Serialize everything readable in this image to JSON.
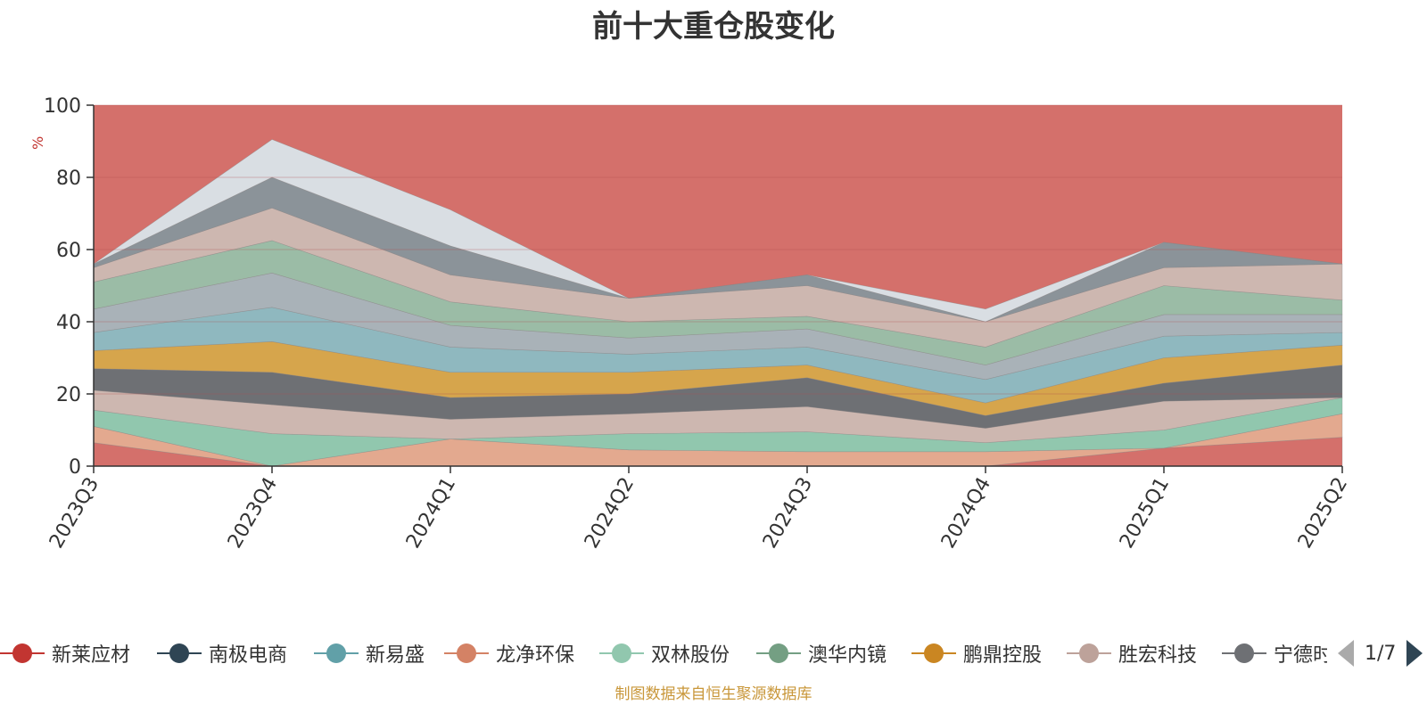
{
  "chart_data": {
    "type": "area",
    "title": "前十大重仓股变化",
    "ylabel": "%",
    "ylim": [
      0,
      100
    ],
    "yticks": [
      0,
      20,
      40,
      60,
      80,
      100
    ],
    "categories": [
      "2023Q3",
      "2023Q4",
      "2024Q1",
      "2024Q2",
      "2024Q3",
      "2024Q4",
      "2025Q1",
      "2025Q2"
    ],
    "legend_position": "bottom",
    "legend_page": "1/7",
    "colors": [
      "#c23531",
      "#2f4554",
      "#61a0a8",
      "#d48265",
      "#91c7ae",
      "#749f83",
      "#ca8622",
      "#bda29a",
      "#6e7074",
      "#546570"
    ],
    "series": [
      {
        "name": "新莱应材",
        "color": "#c23531",
        "values": [
          6.5,
          0,
          0,
          0,
          0,
          0,
          5,
          14
        ]
      },
      {
        "name": "南极电商",
        "color": "#2f4554",
        "values": [
          0,
          0,
          0,
          0,
          0,
          4,
          0,
          0
        ]
      },
      {
        "name": "新易盛",
        "color": "#61a0a8",
        "values": [
          0,
          0,
          0,
          0,
          0,
          0,
          0,
          8
        ]
      },
      {
        "name": "龙净环保",
        "color": "#d48265",
        "values": [
          4.5,
          0,
          0,
          0,
          0,
          0,
          0,
          5
        ]
      },
      {
        "name": "双林股份",
        "color": "#91c7ae",
        "values": [
          0,
          0,
          0,
          0,
          4.5,
          0,
          5,
          0
        ]
      },
      {
        "name": "澳华内镜",
        "color": "#749f83",
        "values": [
          4.5,
          0,
          0,
          0,
          0,
          0,
          0,
          0
        ]
      }
    ],
    "legend": [
      "新莱应材",
      "南极电商",
      "新易盛",
      "龙净环保",
      "双林股份",
      "澳华内镜",
      "鹏鼎控股",
      "胜宏科技",
      "宁德时代"
    ]
  },
  "source_note": "制图数据来自恒生聚源数据库",
  "grey_palette": [
    "#6e7074",
    "#8b9399",
    "#a9b2b8",
    "#c4ccd3",
    "#d9dee3"
  ],
  "warm_palette": [
    "#d6a54c",
    "#e3a98f",
    "#cdb7b0",
    "#d9b8a4"
  ],
  "cool_palette": [
    "#8fb8bf",
    "#a8d6c2",
    "#9bbca6"
  ],
  "red_area": "#d4706b"
}
